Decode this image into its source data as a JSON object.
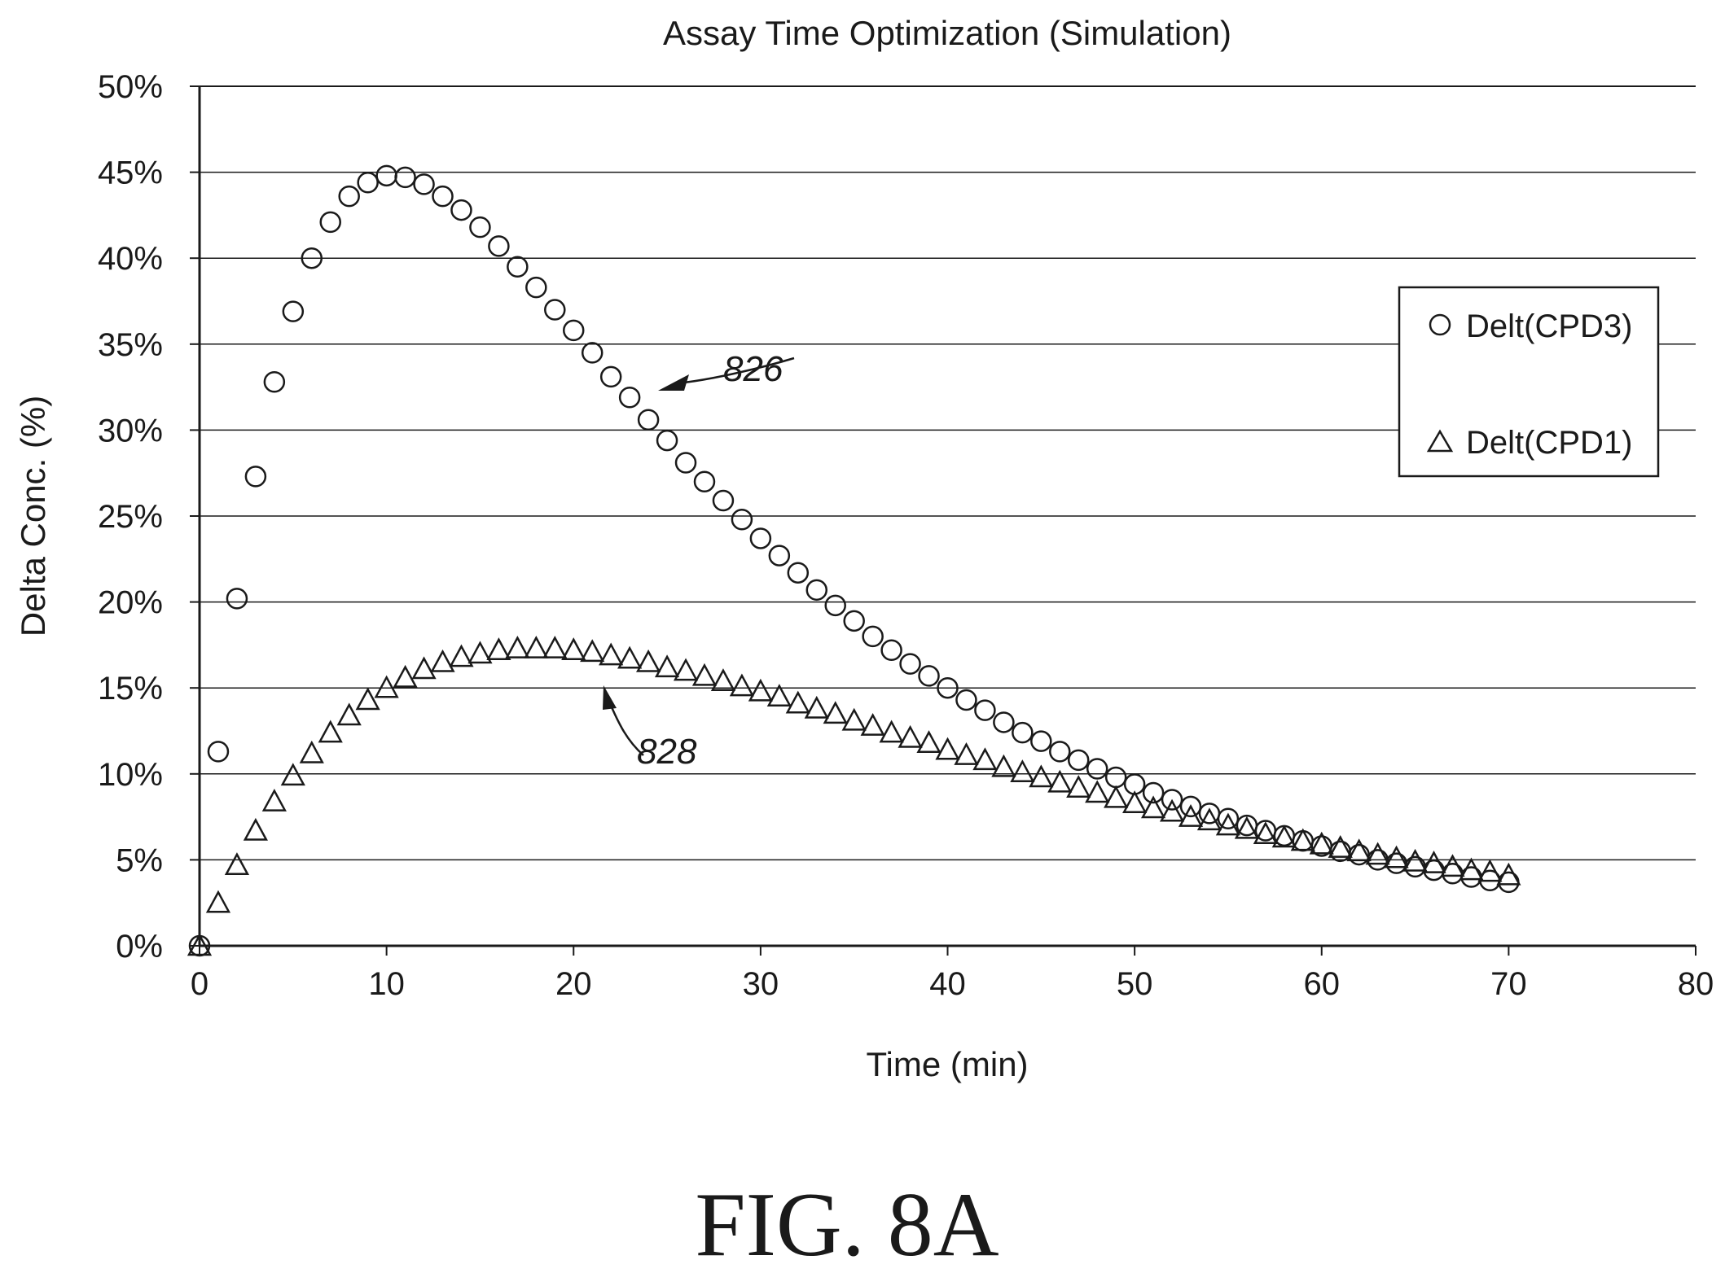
{
  "chart_data": {
    "type": "scatter",
    "title": "Assay Time Optimization (Simulation)",
    "xlabel": "Time (min)",
    "ylabel": "Delta Conc. (%)",
    "xlim": [
      0,
      80
    ],
    "ylim": [
      0,
      50
    ],
    "x_ticks": [
      "0",
      "10",
      "20",
      "30",
      "40",
      "50",
      "60",
      "70",
      "80"
    ],
    "y_ticks": [
      "0%",
      "5%",
      "10%",
      "15%",
      "20%",
      "25%",
      "30%",
      "35%",
      "40%",
      "45%",
      "50%"
    ],
    "grid": "horizontal",
    "legend_position": "right",
    "series": [
      {
        "name": "Delt(CPD3)",
        "marker": "circle",
        "x": [
          0,
          1,
          2,
          3,
          4,
          5,
          6,
          7,
          8,
          9,
          10,
          11,
          12,
          13,
          14,
          15,
          16,
          17,
          18,
          19,
          20,
          21,
          22,
          23,
          24,
          25,
          26,
          27,
          28,
          29,
          30,
          31,
          32,
          33,
          34,
          35,
          36,
          37,
          38,
          39,
          40,
          41,
          42,
          43,
          44,
          45,
          46,
          47,
          48,
          49,
          50,
          51,
          52,
          53,
          54,
          55,
          56,
          57,
          58,
          59,
          60,
          61,
          62,
          63,
          64,
          65,
          66,
          67,
          68,
          69,
          70
        ],
        "y": [
          0,
          11.3,
          20.2,
          27.3,
          32.8,
          36.9,
          40.0,
          42.1,
          43.6,
          44.4,
          44.8,
          44.7,
          44.3,
          43.6,
          42.8,
          41.8,
          40.7,
          39.5,
          38.3,
          37.0,
          35.8,
          34.5,
          33.1,
          31.9,
          30.6,
          29.4,
          28.1,
          27.0,
          25.9,
          24.8,
          23.7,
          22.7,
          21.7,
          20.7,
          19.8,
          18.9,
          18.0,
          17.2,
          16.4,
          15.7,
          15.0,
          14.3,
          13.7,
          13.0,
          12.4,
          11.9,
          11.3,
          10.8,
          10.3,
          9.8,
          9.4,
          8.9,
          8.5,
          8.1,
          7.7,
          7.4,
          7.0,
          6.7,
          6.4,
          6.1,
          5.8,
          5.5,
          5.3,
          5.0,
          4.8,
          4.6,
          4.4,
          4.2,
          4.0,
          3.8,
          3.7
        ]
      },
      {
        "name": "Delt(CPD1)",
        "marker": "triangle",
        "x": [
          0,
          1,
          2,
          3,
          4,
          5,
          6,
          7,
          8,
          9,
          10,
          11,
          12,
          13,
          14,
          15,
          16,
          17,
          18,
          19,
          20,
          21,
          22,
          23,
          24,
          25,
          26,
          27,
          28,
          29,
          30,
          31,
          32,
          33,
          34,
          35,
          36,
          37,
          38,
          39,
          40,
          41,
          42,
          43,
          44,
          45,
          46,
          47,
          48,
          49,
          50,
          51,
          52,
          53,
          54,
          55,
          56,
          57,
          58,
          59,
          60,
          61,
          62,
          63,
          64,
          65,
          66,
          67,
          68,
          69,
          70
        ],
        "y": [
          0,
          2.5,
          4.7,
          6.7,
          8.4,
          9.9,
          11.2,
          12.4,
          13.4,
          14.3,
          15.0,
          15.6,
          16.1,
          16.5,
          16.8,
          17.0,
          17.2,
          17.3,
          17.3,
          17.3,
          17.2,
          17.1,
          16.9,
          16.7,
          16.5,
          16.2,
          16.0,
          15.7,
          15.4,
          15.1,
          14.8,
          14.5,
          14.1,
          13.8,
          13.5,
          13.1,
          12.8,
          12.4,
          12.1,
          11.8,
          11.4,
          11.1,
          10.8,
          10.4,
          10.1,
          9.8,
          9.5,
          9.2,
          8.9,
          8.6,
          8.3,
          8.0,
          7.8,
          7.5,
          7.3,
          7.0,
          6.8,
          6.5,
          6.3,
          6.1,
          5.9,
          5.7,
          5.5,
          5.3,
          5.1,
          4.9,
          4.8,
          4.6,
          4.4,
          4.3,
          4.1
        ]
      }
    ],
    "annotations": [
      {
        "text": "826",
        "x": 28,
        "y": 34
      },
      {
        "text": "828",
        "x": 25,
        "y": 11.5
      }
    ]
  },
  "figure": {
    "caption": "FIG. 8A"
  }
}
